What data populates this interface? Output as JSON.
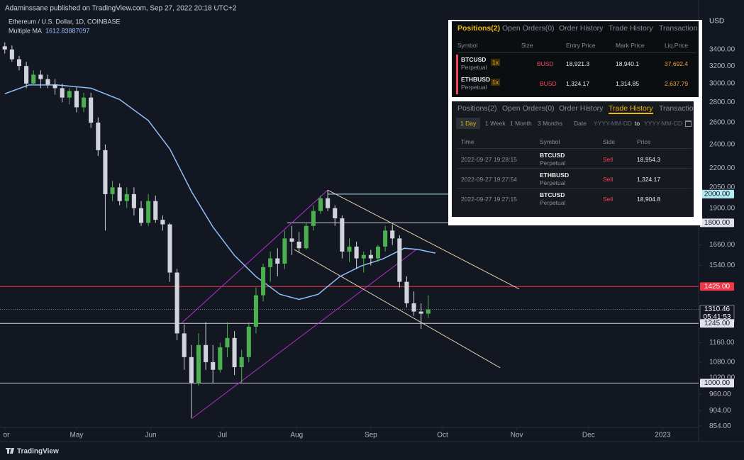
{
  "header": "Adaminssane published on TradingView.com, Sep 27, 2022 20:18 UTC+2",
  "brand": "TradingView",
  "chart_data": {
    "type": "candlestick",
    "title": "Ethereum / U.S. Dollar, 1D, COINBASE",
    "currency": "USD",
    "log_scale": true,
    "grid": false,
    "up_color": "#4caf50",
    "down_color": "#d1d4dc",
    "xlim": [
      -2,
      290
    ],
    "xticks": [
      {
        "value": 0,
        "label": "or"
      },
      {
        "value": 30,
        "label": "May"
      },
      {
        "value": 61,
        "label": "Jun"
      },
      {
        "value": 91,
        "label": "Jul"
      },
      {
        "value": 122,
        "label": "Aug"
      },
      {
        "value": 153,
        "label": "Sep"
      },
      {
        "value": 183,
        "label": "Oct"
      },
      {
        "value": 214,
        "label": "Nov"
      },
      {
        "value": 244,
        "label": "Dec"
      },
      {
        "value": 275,
        "label": "2023"
      }
    ],
    "ylim": [
      850,
      3850
    ],
    "yticks": [
      {
        "value": 3400,
        "label": "3400.00"
      },
      {
        "value": 3200,
        "label": "3200.00"
      },
      {
        "value": 3000,
        "label": "3000.00"
      },
      {
        "value": 2800,
        "label": "2800.00"
      },
      {
        "value": 2600,
        "label": "2600.00"
      },
      {
        "value": 2400,
        "label": "2400.00"
      },
      {
        "value": 2200,
        "label": "2200.00"
      },
      {
        "value": 2050,
        "label": "2050.00"
      },
      {
        "value": 1900,
        "label": "1900.00"
      },
      {
        "value": 1660,
        "label": "1660.00"
      },
      {
        "value": 1540,
        "label": "1540.00"
      },
      {
        "value": 1160,
        "label": "1160.00"
      },
      {
        "value": 1080,
        "label": "1080.00"
      },
      {
        "value": 1020,
        "label": "1020.00"
      },
      {
        "value": 960,
        "label": "960.00"
      },
      {
        "value": 904,
        "label": "904.00"
      },
      {
        "value": 854,
        "label": "854.00"
      }
    ],
    "x": [
      0,
      3,
      6,
      9,
      12,
      15,
      18,
      21,
      24,
      27,
      30,
      33,
      36,
      39,
      42,
      45,
      48,
      51,
      54,
      57,
      60,
      63,
      66,
      69,
      72,
      75,
      78,
      81,
      84,
      87,
      90,
      93,
      96,
      99,
      102,
      105,
      108,
      111,
      114,
      117,
      120,
      123,
      126,
      129,
      132,
      135,
      138,
      141,
      144,
      147,
      150,
      153,
      156,
      159,
      162,
      165,
      168,
      171,
      174,
      177
    ],
    "open": [
      3440,
      3400,
      3280,
      3200,
      3000,
      3100,
      3050,
      2990,
      2950,
      2850,
      2920,
      2750,
      2850,
      2600,
      2350,
      2000,
      2050,
      1950,
      2000,
      1900,
      1800,
      1950,
      1820,
      1790,
      1500,
      1200,
      1100,
      1000,
      1150,
      1080,
      1050,
      1140,
      1180,
      1060,
      1100,
      1230,
      1380,
      1530,
      1580,
      1550,
      1700,
      1680,
      1640,
      1780,
      1880,
      1970,
      1900,
      1830,
      1620,
      1650,
      1580,
      1600,
      1580,
      1650,
      1750,
      1700,
      1450,
      1340,
      1300,
      1290
    ],
    "high": [
      3490,
      3450,
      3320,
      3250,
      3150,
      3150,
      3100,
      3050,
      3000,
      2950,
      2960,
      2900,
      2900,
      2650,
      2400,
      2100,
      2080,
      2050,
      2050,
      1950,
      2000,
      1990,
      1850,
      1800,
      1520,
      1240,
      1150,
      1200,
      1250,
      1150,
      1160,
      1250,
      1210,
      1130,
      1250,
      1420,
      1550,
      1620,
      1640,
      1750,
      1780,
      1740,
      1800,
      1920,
      1990,
      2030,
      1920,
      1850,
      1700,
      1680,
      1620,
      1630,
      1660,
      1780,
      1790,
      1720,
      1480,
      1400,
      1340,
      1380
    ],
    "low": [
      3350,
      3250,
      3150,
      2950,
      2980,
      2950,
      2950,
      2880,
      2800,
      2780,
      2700,
      2700,
      2550,
      2300,
      1750,
      1950,
      1920,
      1900,
      1850,
      1780,
      1780,
      1800,
      1750,
      1450,
      1170,
      1050,
      880,
      990,
      1050,
      1000,
      1040,
      1100,
      1030,
      1000,
      1080,
      1200,
      1350,
      1450,
      1480,
      1520,
      1600,
      1610,
      1630,
      1750,
      1860,
      1880,
      1780,
      1580,
      1560,
      1520,
      1500,
      1540,
      1560,
      1620,
      1660,
      1420,
      1320,
      1280,
      1220,
      1270
    ],
    "close": [
      3400,
      3280,
      3200,
      3000,
      3100,
      3050,
      2990,
      2950,
      2850,
      2920,
      2750,
      2850,
      2600,
      2350,
      2000,
      2050,
      1950,
      2000,
      1900,
      1800,
      1950,
      1820,
      1790,
      1500,
      1200,
      1100,
      1000,
      1150,
      1080,
      1050,
      1140,
      1180,
      1060,
      1100,
      1230,
      1380,
      1530,
      1580,
      1550,
      1700,
      1680,
      1640,
      1780,
      1880,
      1970,
      1900,
      1830,
      1620,
      1650,
      1580,
      1600,
      1580,
      1650,
      1750,
      1700,
      1450,
      1340,
      1300,
      1290,
      1310
    ],
    "ma": {
      "name": "Multiple MA",
      "last": 1612.83887097,
      "color": "#90bff9",
      "x": [
        0,
        10,
        22,
        36,
        48,
        60,
        69,
        78,
        87,
        96,
        105,
        115,
        123,
        131,
        140,
        149,
        158,
        167,
        173,
        180
      ],
      "values": [
        2890,
        2985,
        2985,
        2950,
        2830,
        2620,
        2360,
        2020,
        1773,
        1597,
        1478,
        1385,
        1359,
        1385,
        1478,
        1537,
        1577,
        1640,
        1632,
        1611
      ]
    },
    "trendlines": [
      {
        "x": [
          78,
          172
        ],
        "values": [
          877,
          1632
        ],
        "color": "#b12fd0"
      },
      {
        "x": [
          74,
          135
        ],
        "values": [
          1247,
          2030
        ],
        "color": "#b12fd0"
      },
      {
        "x": [
          135,
          215
        ],
        "values": [
          2030,
          1412
        ],
        "color": "#e8cfb0"
      },
      {
        "x": [
          121,
          207
        ],
        "values": [
          1632,
          1058
        ],
        "color": "#e8cfb0"
      }
    ],
    "hlines": [
      {
        "value": 2000,
        "label": "2000.00",
        "start": 135,
        "color": "#b2ebf2",
        "label_bg": "#b2ebf2"
      },
      {
        "value": 1800,
        "label": "1800.00",
        "start": 118,
        "color": "#d1d4dc",
        "label_bg": "#e0e3eb"
      },
      {
        "value": 1425,
        "label": "1425.00",
        "color": "#f23645",
        "label_bg": "#f23645"
      },
      {
        "value": 1310.46,
        "label": "1310.46",
        "countdown": "05:41:53",
        "color": "#787b86",
        "label_bg": "#131722",
        "style": "dotted"
      },
      {
        "value": 1245,
        "label": "1245.00",
        "color": "#d1d4dc",
        "label_bg": "#e0e3eb"
      },
      {
        "value": 1000,
        "label": "1000.00",
        "color": "#d1d4dc",
        "label_bg": "#e0e3eb"
      }
    ]
  },
  "positions_panel": {
    "tabs": [
      "Positions(2)",
      "Open Orders(0)",
      "Order History",
      "Trade History",
      "Transaction"
    ],
    "headers": [
      "Symbol",
      "Size",
      "Entry Price",
      "Mark Price",
      "Liq.Price"
    ],
    "rows": [
      {
        "symbol": "BTCUSD",
        "contract": "Perpetual",
        "leverage": "1x",
        "margin": "BUSD",
        "entry_price": "18,921.3",
        "mark_price": "18,940.1",
        "liq_price": "37,692.4"
      },
      {
        "symbol": "ETHBUSD",
        "contract": "Perpetual",
        "leverage": "1x",
        "margin": "BUSD",
        "entry_price": "1,324.17",
        "mark_price": "1,314.85",
        "liq_price": "2,637.79"
      }
    ]
  },
  "trades_panel": {
    "tabs": [
      "Positions(2)",
      "Open Orders(0)",
      "Order History",
      "Trade History",
      "Transaction"
    ],
    "periods": [
      "1 Day",
      "1 Week",
      "1 Month",
      "3 Months"
    ],
    "date_label": "Date",
    "date_from": "YYYY-MM-DD",
    "to": "to",
    "date_to": "YYYY-MM-DD",
    "headers": [
      "Time",
      "Symbol",
      "Side",
      "Price"
    ],
    "rows": [
      {
        "time": "2022-09-27 19:28:15",
        "symbol": "BTCUSD",
        "contract": "Perpetual",
        "side": "Sell",
        "price": "18,954.3"
      },
      {
        "time": "2022-09-27 19:27:54",
        "symbol": "ETHBUSD",
        "contract": "Perpetual",
        "side": "Sell",
        "price": "1,324.17"
      },
      {
        "time": "2022-09-27 19:27:15",
        "symbol": "BTCUSD",
        "contract": "Perpetual",
        "side": "Sell",
        "price": "18,904.8"
      }
    ]
  }
}
